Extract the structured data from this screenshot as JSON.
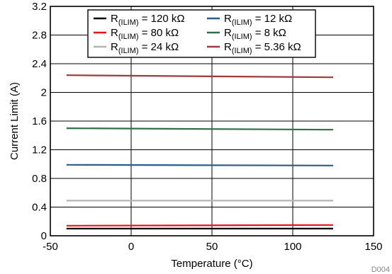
{
  "chart_data": {
    "type": "line",
    "xlabel": "Temperature (°C)",
    "ylabel": "Current Limit (A)",
    "xlim": [
      -50,
      150
    ],
    "ylim": [
      0,
      3.2
    ],
    "xticks": [
      -50,
      0,
      50,
      100,
      150
    ],
    "yticks": [
      0,
      0.4,
      0.8,
      1.2,
      1.6,
      2,
      2.4,
      2.8,
      3.2
    ],
    "ytick_labels": [
      "0",
      "0.4",
      "0.8",
      "1.2",
      "1.6",
      "2",
      "2.4",
      "2.8",
      "3.2"
    ],
    "grid": true,
    "legend_position": "top",
    "x": [
      -40,
      125
    ],
    "series": [
      {
        "name_main": "R",
        "name_sub": "(ILIM)",
        "name_value": " = 120 kΩ",
        "color": "#000000",
        "values": [
          0.1,
          0.1
        ]
      },
      {
        "name_main": "R",
        "name_sub": "(ILIM)",
        "name_value": " = 80 kΩ",
        "color": "#e8131a",
        "values": [
          0.14,
          0.15
        ]
      },
      {
        "name_main": "R",
        "name_sub": "(ILIM)",
        "name_value": " = 24 kΩ",
        "color": "#b3b3b3",
        "values": [
          0.49,
          0.49
        ]
      },
      {
        "name_main": "R",
        "name_sub": "(ILIM)",
        "name_value": " = 12 kΩ",
        "color": "#2a5d8a",
        "values": [
          0.99,
          0.98
        ]
      },
      {
        "name_main": "R",
        "name_sub": "(ILIM)",
        "name_value": " = 8 kΩ",
        "color": "#2f7048",
        "values": [
          1.5,
          1.48
        ]
      },
      {
        "name_main": "R",
        "name_sub": "(ILIM)",
        "name_value": " = 5.36 kΩ",
        "color": "#9e3a3e",
        "values": [
          2.24,
          2.21
        ]
      }
    ]
  },
  "footnote": "D004"
}
